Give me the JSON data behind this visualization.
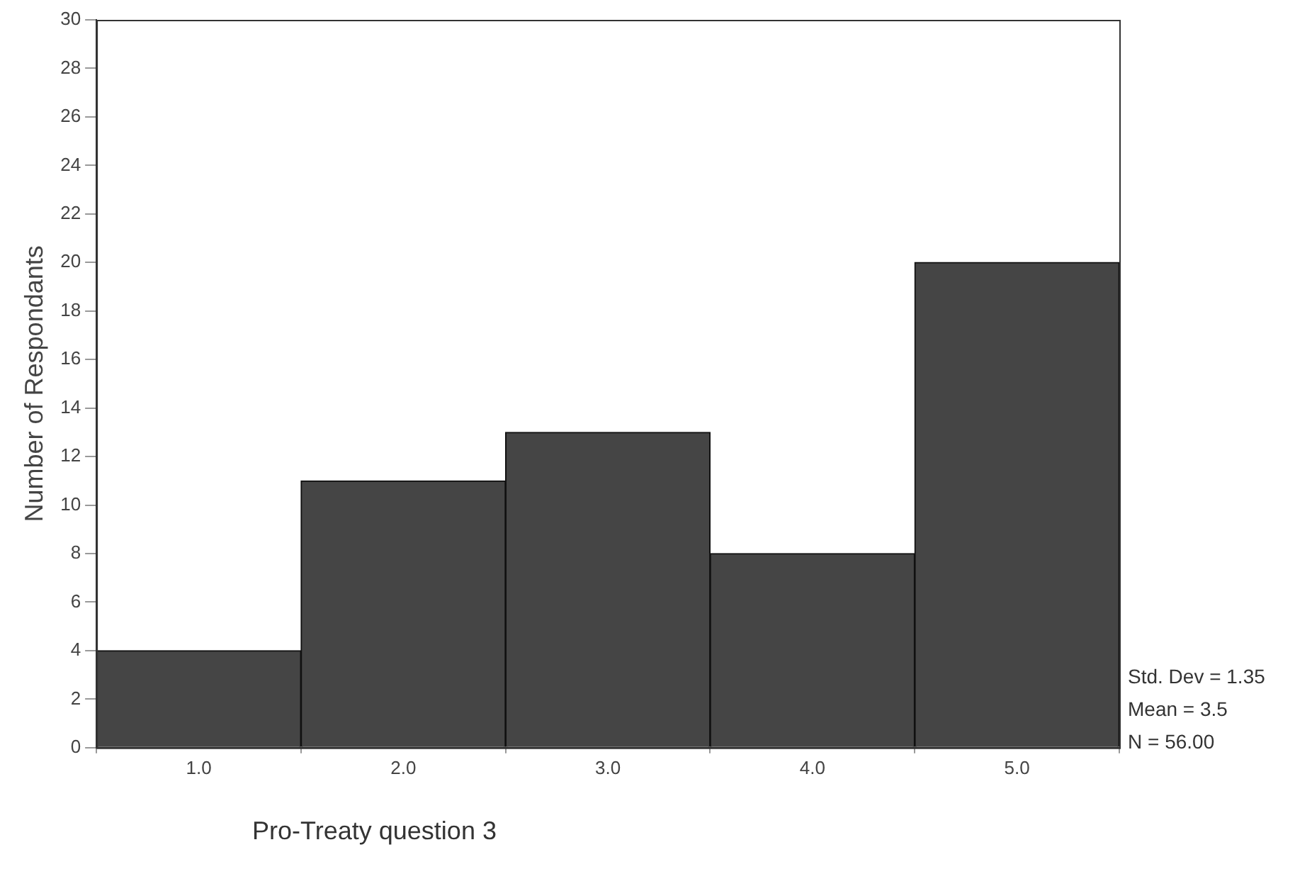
{
  "chart_data": {
    "type": "histogram",
    "xlabel": "Pro-Treaty question 3",
    "ylabel": "Number of Respondants",
    "bins": [
      0.5,
      1.5,
      2.5,
      3.5,
      4.5,
      5.5
    ],
    "values": [
      4,
      11,
      13,
      8,
      20
    ],
    "color": "#454545",
    "xlim": [
      0.5,
      5.5
    ],
    "xticks": [
      {
        "value": 1,
        "label": "1.0"
      },
      {
        "value": 2,
        "label": "2.0"
      },
      {
        "value": 3,
        "label": "3.0"
      },
      {
        "value": 4,
        "label": "4.0"
      },
      {
        "value": 5,
        "label": "5.0"
      }
    ],
    "ylim": [
      0,
      30
    ],
    "yticks": [
      0,
      2,
      4,
      6,
      8,
      10,
      12,
      14,
      16,
      18,
      20,
      22,
      24,
      26,
      28,
      30
    ],
    "grid": false,
    "legend": false,
    "annotations": [
      "Std. Dev = 1.35",
      "Mean = 3.5",
      "N = 56.00"
    ]
  }
}
